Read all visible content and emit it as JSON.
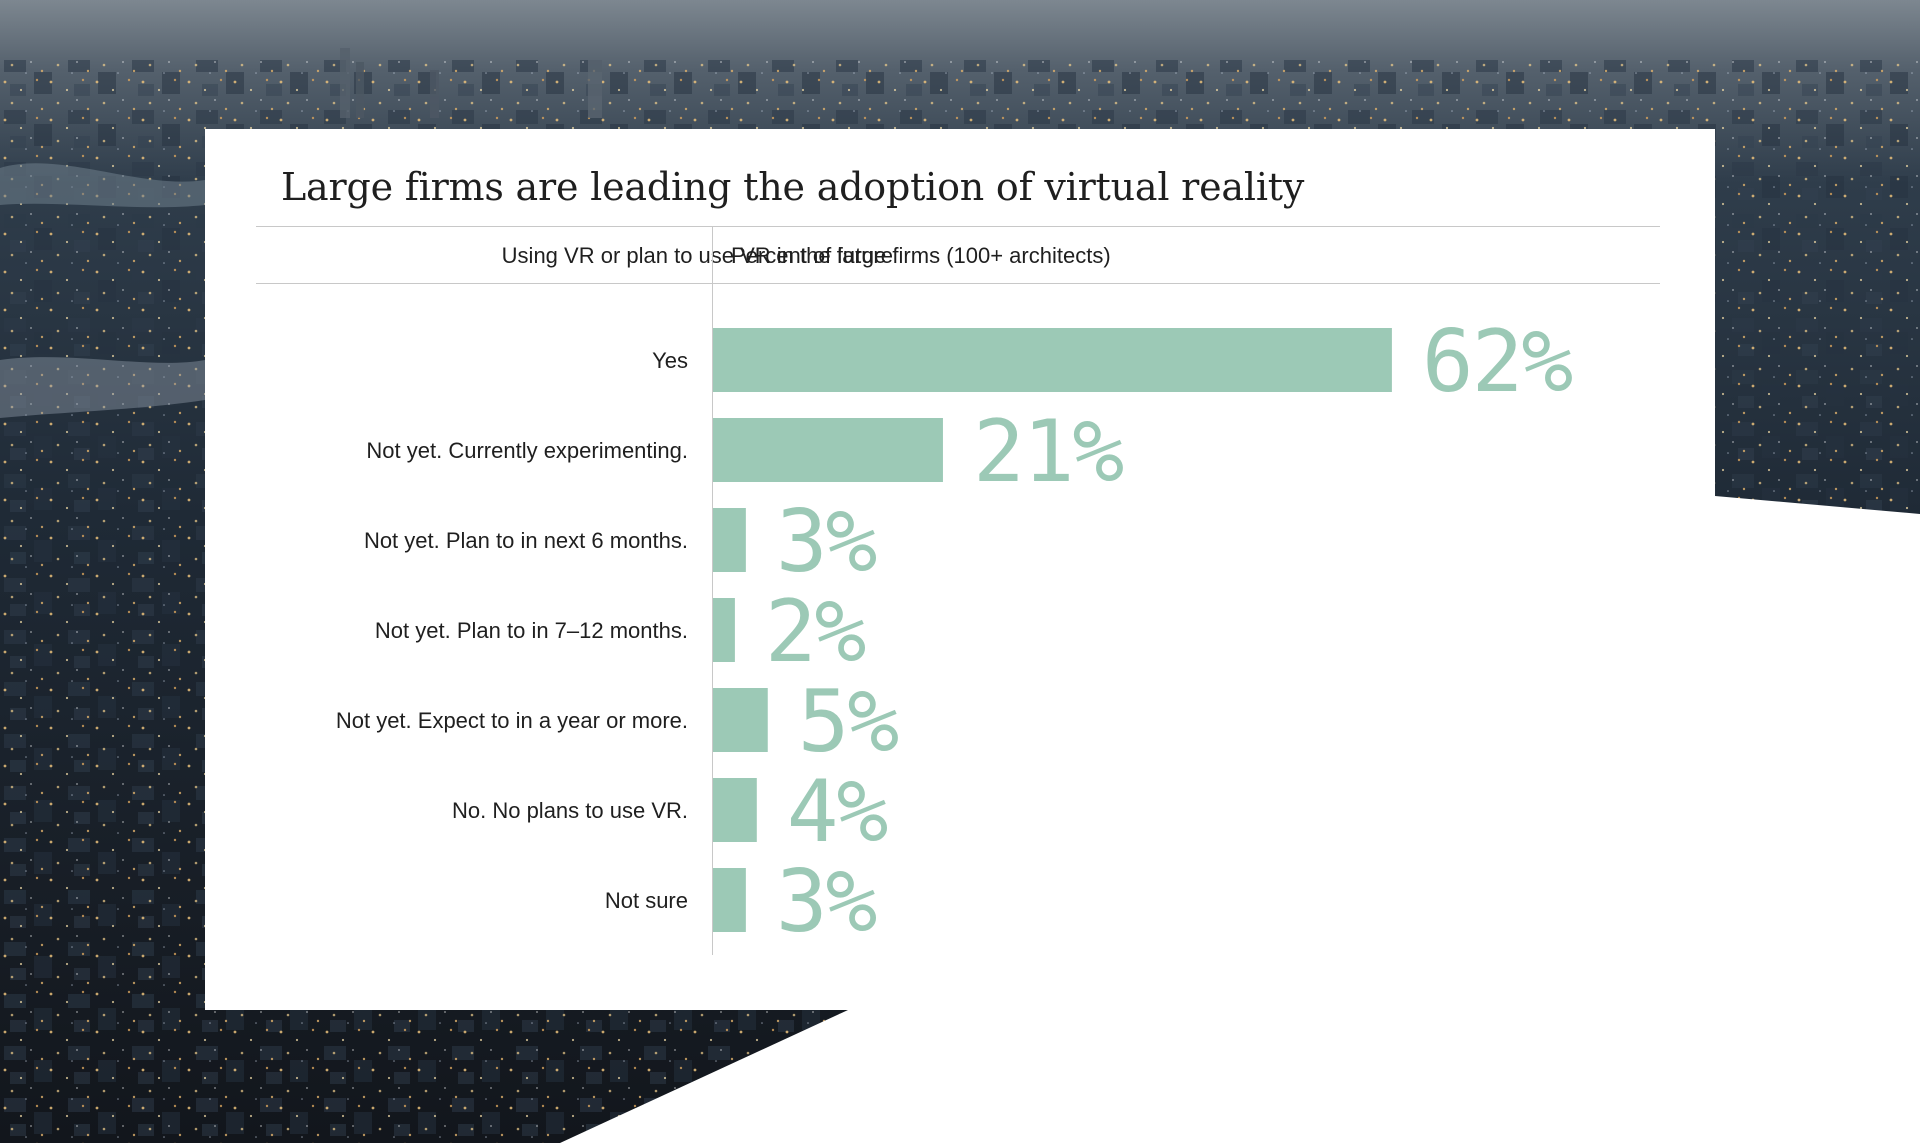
{
  "chart_data": {
    "type": "bar",
    "orientation": "horizontal",
    "title": "Large firms are leading the adoption of virtual reality",
    "category_header": "Using VR or plan to use VR in the future",
    "value_header": "Percent of large firms (100+ architects)",
    "categories": [
      "Yes",
      "Not yet. Currently experimenting.",
      "Not yet. Plan to in next 6 months.",
      "Not yet. Plan to in 7–12 months.",
      "Not yet. Expect to in a year or more.",
      "No. No plans to use VR.",
      "Not sure"
    ],
    "values": [
      62,
      21,
      3,
      2,
      5,
      4,
      3
    ],
    "value_labels": [
      "62%",
      "21%",
      "3%",
      "2%",
      "5%",
      "4%",
      "3%"
    ],
    "unit": "%",
    "xlim": [
      0,
      100
    ],
    "grid": false,
    "legend": "none",
    "colors": {
      "bar": "#9cc9b6",
      "value_label": "#9cc9b6",
      "text": "#1f1f1f",
      "rule": "#c8c8c8"
    }
  }
}
